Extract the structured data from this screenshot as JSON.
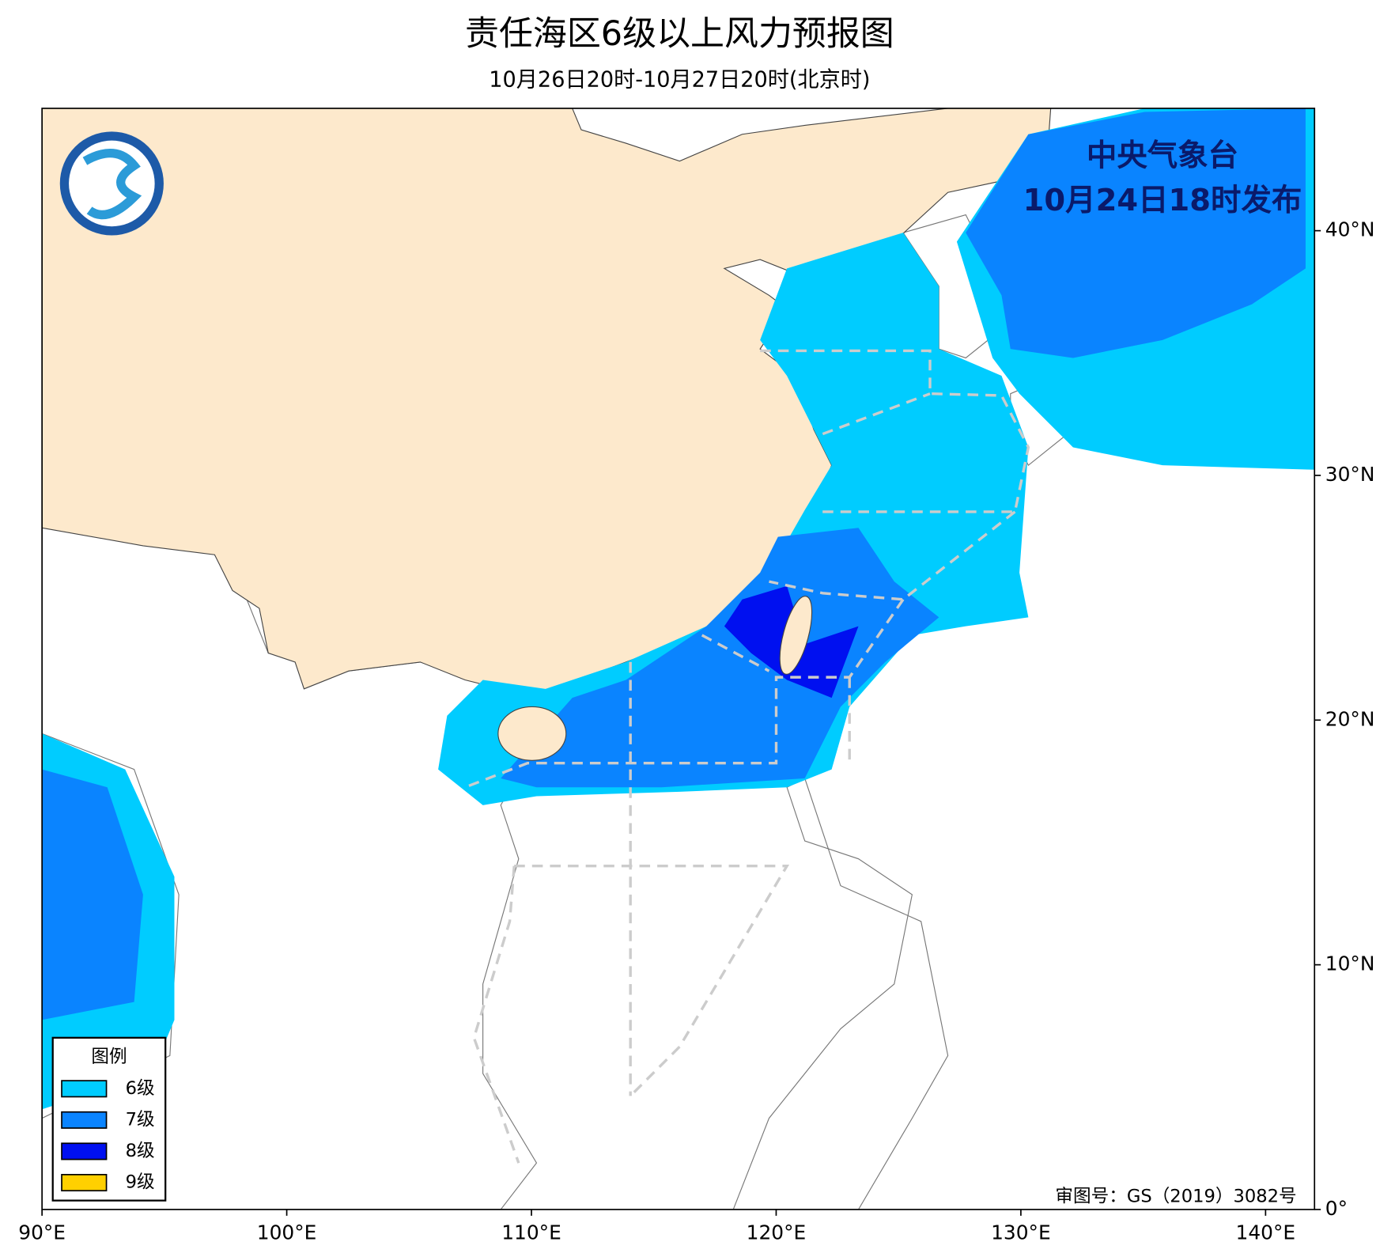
{
  "header": {
    "title": "责任海区6级以上风力预报图",
    "subtitle": "10月26日20时-10月27日20时(北京时)"
  },
  "stamp": {
    "agency": "中央气象台",
    "issued": "10月24日18时发布"
  },
  "legend": {
    "title": "图例",
    "items": [
      {
        "label": "6级",
        "color": "#00ccff"
      },
      {
        "label": "7级",
        "color": "#0a84ff"
      },
      {
        "label": "8级",
        "color": "#0010f0"
      },
      {
        "label": "9级",
        "color": "#ffd000"
      }
    ]
  },
  "map": {
    "xlim": [
      90,
      142
    ],
    "ylim": [
      0,
      45
    ],
    "xticks": [
      {
        "value": 90,
        "label": "90°E"
      },
      {
        "value": 100,
        "label": "100°E"
      },
      {
        "value": 110,
        "label": "110°E"
      },
      {
        "value": 120,
        "label": "120°E"
      },
      {
        "value": 130,
        "label": "130°E"
      },
      {
        "value": 140,
        "label": "140°E"
      }
    ],
    "yticks": [
      {
        "value": 0,
        "label": "0°"
      },
      {
        "value": 10,
        "label": "10°N"
      },
      {
        "value": 20,
        "label": "20°N"
      },
      {
        "value": 30,
        "label": "30°N"
      },
      {
        "value": 40,
        "label": "40°N"
      }
    ]
  },
  "note": "审图号：GS（2019）3082号"
}
